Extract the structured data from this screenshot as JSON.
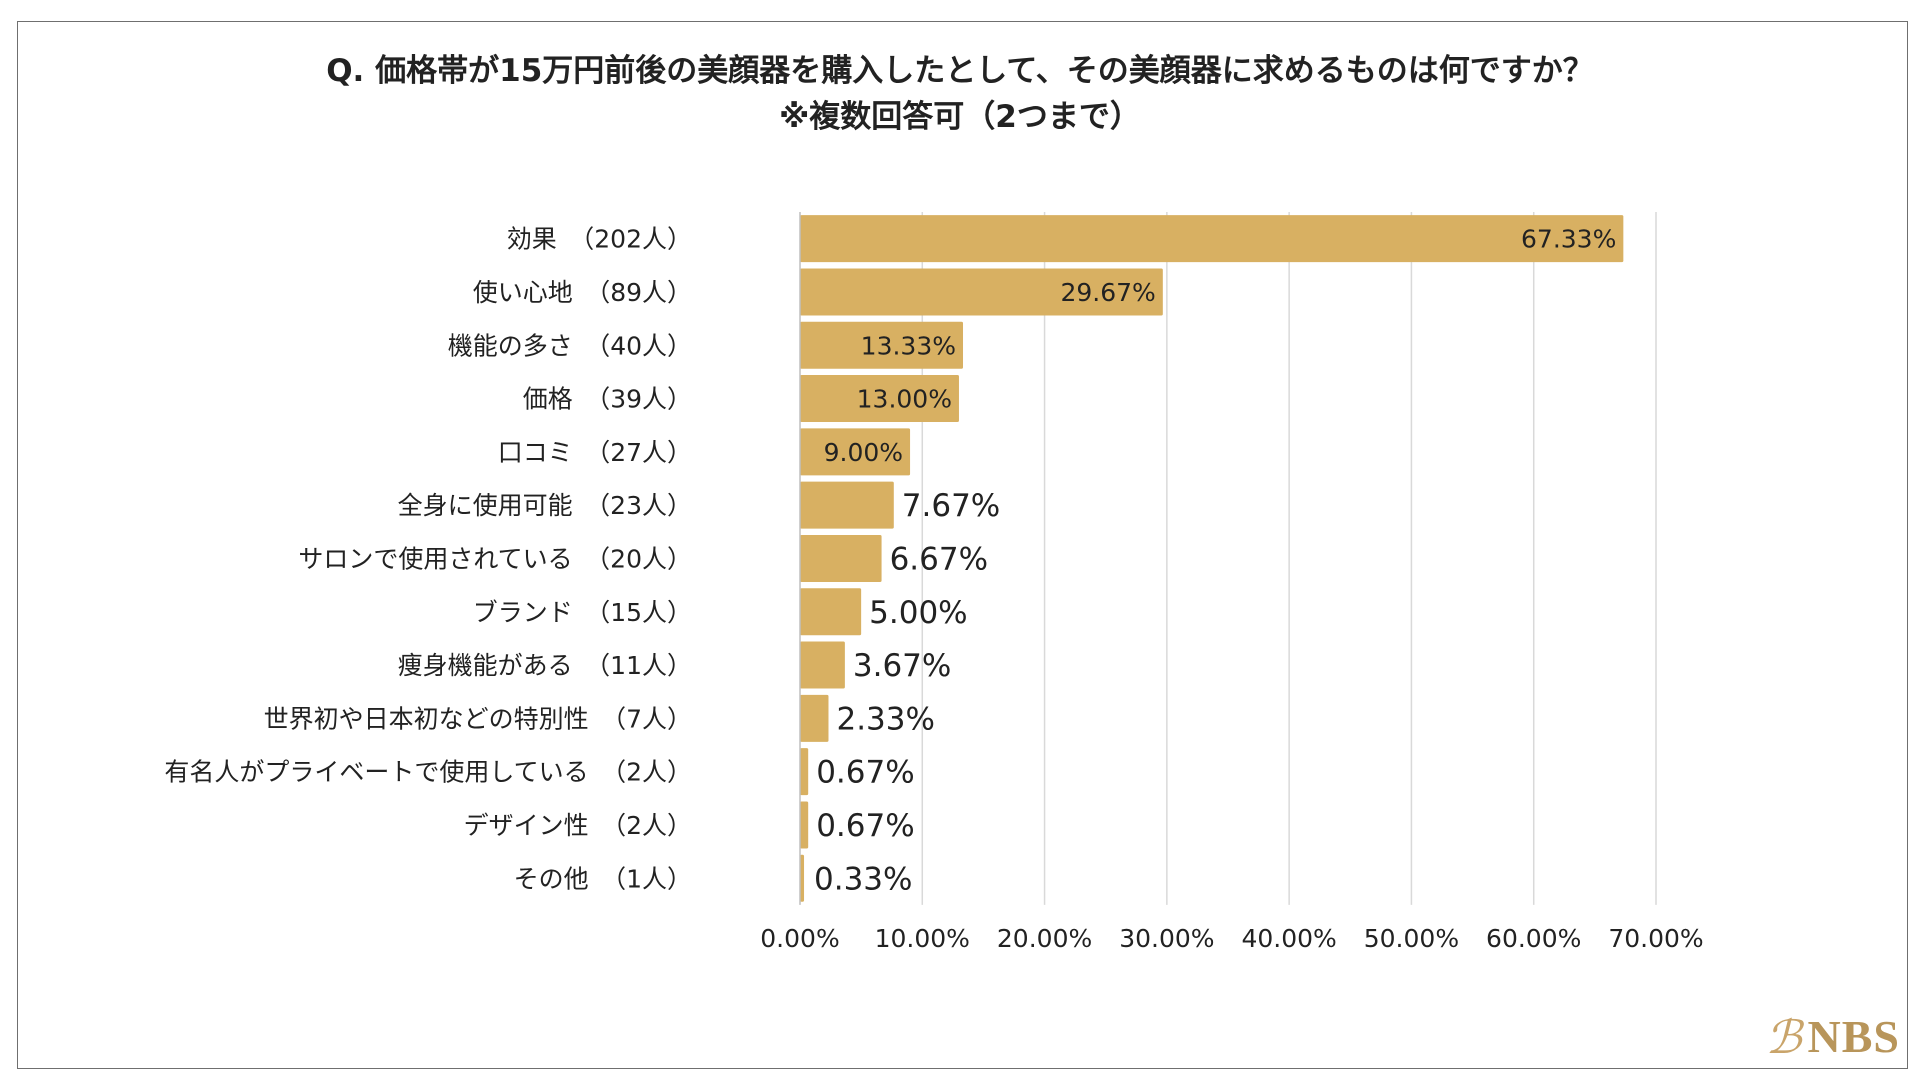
{
  "chart_data": {
    "type": "bar",
    "orientation": "horizontal",
    "title": "Q.  価格帯が15万円前後の美顔器を購入したとして、その美顔器に求めるものは何ですか？",
    "subtitle": "※複数回答可（2つまで）",
    "categories": [
      "効果　（202人）",
      "使い心地　（89人）",
      "機能の多さ　（40人）",
      "価格　（39人）",
      "口コミ　（27人）",
      "全身に使用可能　（23人）",
      "サロンで使用されている　（20人）",
      "ブランド　（15人）",
      "痩身機能がある　（11人）",
      "世界初や日本初などの特別性　（7人）",
      "有名人がプライベートで使用している　（2人）",
      "デザイン性　（2人）",
      "その他　（1人）"
    ],
    "values": [
      67.33,
      29.67,
      13.33,
      13.0,
      9.0,
      7.67,
      6.67,
      5.0,
      3.67,
      2.33,
      0.67,
      0.67,
      0.33
    ],
    "value_labels": [
      "67.33%",
      "29.67%",
      "13.33%",
      "13.00%",
      "9.00%",
      "7.67%",
      "6.67%",
      "5.00%",
      "3.67%",
      "2.33%",
      "0.67%",
      "0.67%",
      "0.33%"
    ],
    "xlim": [
      0,
      70
    ],
    "xticks": [
      0,
      10,
      20,
      30,
      40,
      50,
      60,
      70
    ],
    "xtick_labels": [
      "0.00%",
      "10.00%",
      "20.00%",
      "30.00%",
      "40.00%",
      "50.00%",
      "60.00%",
      "70.00%"
    ],
    "xlabel": "",
    "ylabel": "",
    "grid": "vertical",
    "bar_color": "#d8b062",
    "grid_color": "#d9d9d9"
  },
  "logo": {
    "mark": "ℬ",
    "text": "NBS",
    "color": "#b8955a"
  }
}
